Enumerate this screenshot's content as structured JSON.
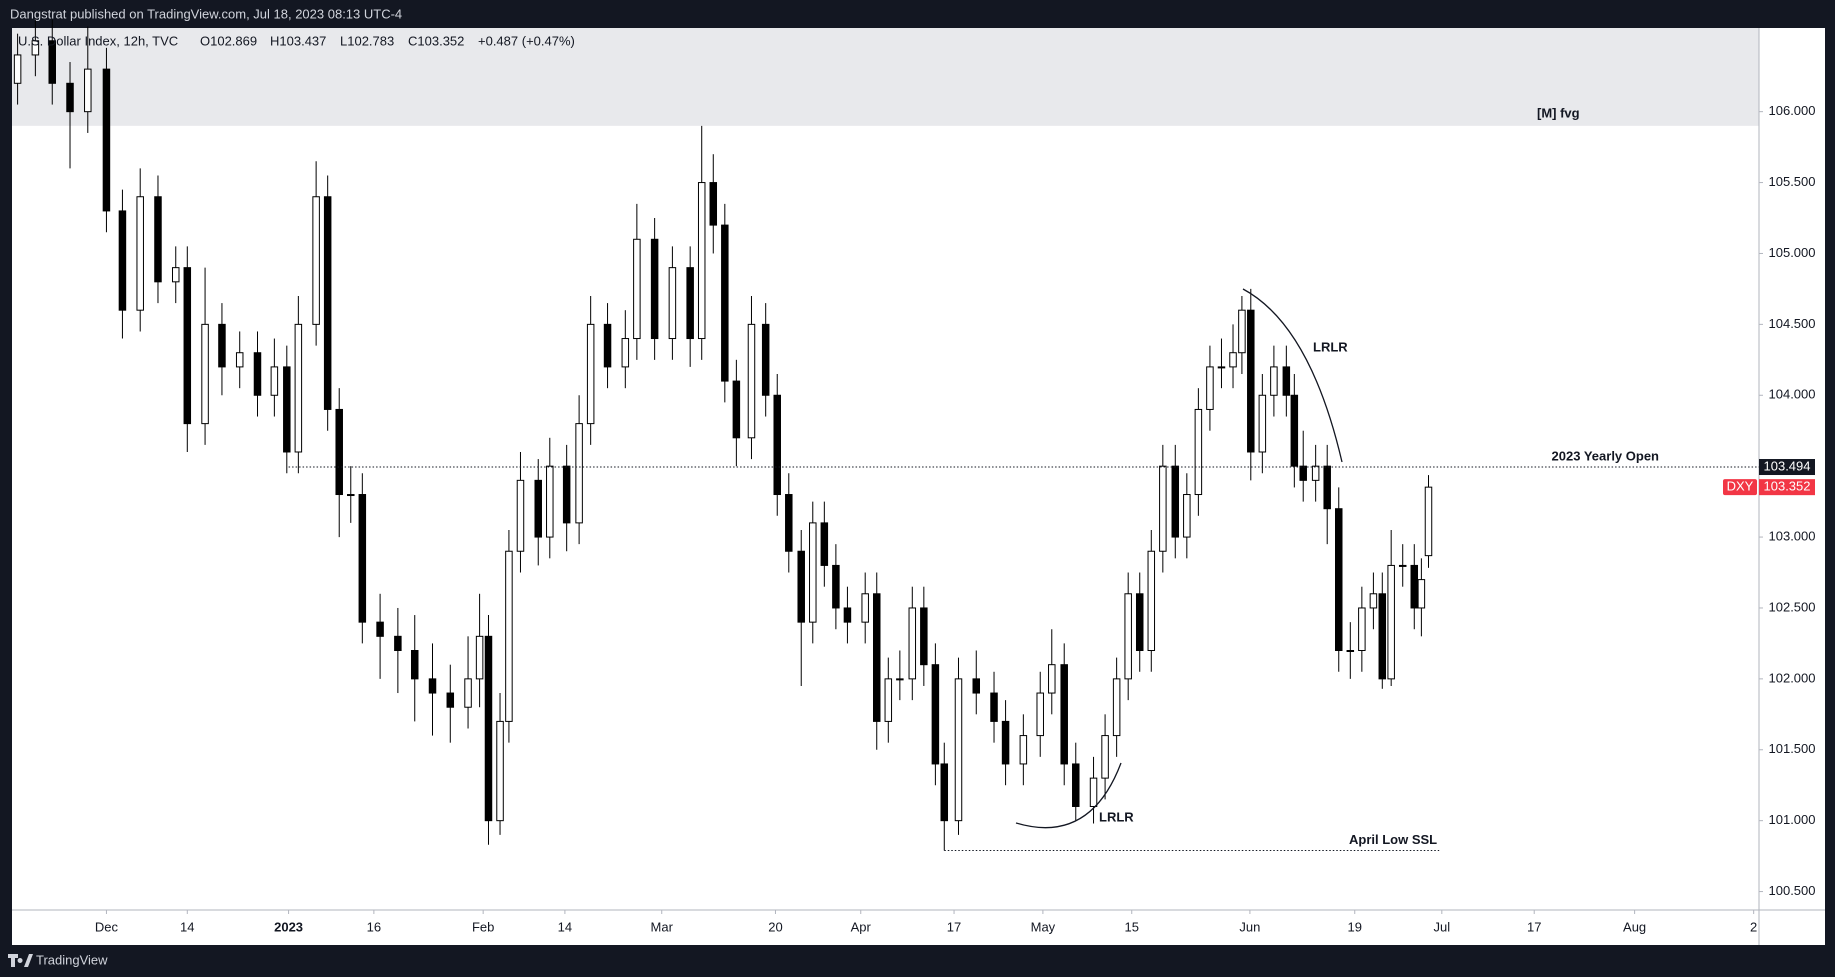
{
  "header": {
    "publisher": "Dangstrat published on TradingView.com, Jul 18, 2023 08:13 UTC-4",
    "brand": "TradingView"
  },
  "chart_data": {
    "type": "candlestick",
    "legend": {
      "symbol": "U.S. Dollar Index, 12h, TVC",
      "open": "O102.869",
      "high": "H103.437",
      "low": "L102.783",
      "close": "C103.352",
      "change": "+0.487 (+0.47%)"
    },
    "ticker": "DXY",
    "up_color": "#ffffff",
    "down_color": "#000000",
    "border_color": "#000000",
    "last_price_color": "#f23645",
    "x": [
      -10.0,
      -8.0,
      -6.1,
      -4.1,
      -2.1,
      0,
      1.8,
      3.8,
      5.8,
      7.8,
      9.1,
      11.1,
      13.0,
      15.0,
      17.0,
      18.9,
      20.3,
      21.6,
      23.6,
      24.9,
      26.2,
      27.5,
      28.8,
      30.8,
      32.8,
      34.7,
      36.7,
      38.7,
      40.7,
      42.0,
      43.0,
      44.3,
      45.3,
      46.6,
      48.6,
      49.9,
      51.8,
      53.2,
      54.5,
      56.4,
      58.4,
      59.7,
      61.7,
      63.7,
      65.7,
      67.0,
      68.3,
      69.6,
      70.9,
      72.6,
      74.2,
      75.5,
      76.8,
      78.2,
      79.5,
      80.8,
      82.1,
      83.4,
      85.4,
      86.7,
      88.0,
      89.3,
      90.7,
      92.0,
      93.3,
      94.3,
      95.9,
      97.9,
      99.9,
      101.2,
      103.2,
      105.1,
      106.4,
      107.8,
      109.1,
      111.1,
      112.4,
      113.7,
      115.0,
      116.3,
      117.6,
      118.9,
      120.3,
      121.6,
      122.9,
      124.2,
      125.5,
      126.8,
      127.8,
      128.8,
      130.1,
      131.4,
      132.8,
      133.7,
      134.7,
      136.1,
      137.4,
      138.7,
      140.0,
      141.3,
      142.6,
      143.6,
      144.6,
      145.9,
      147.2,
      148.0,
      148.8
    ],
    "open": [
      106.2,
      106.4,
      106.5,
      106.2,
      106.0,
      106.3,
      105.3,
      104.6,
      105.4,
      104.8,
      104.9,
      103.8,
      104.5,
      104.2,
      104.3,
      104.0,
      104.2,
      103.6,
      104.5,
      105.4,
      103.9,
      103.3,
      103.3,
      102.4,
      102.3,
      102.2,
      102.0,
      101.9,
      101.8,
      102.0,
      102.3,
      101.0,
      101.7,
      102.9,
      103.4,
      103.0,
      103.5,
      103.1,
      103.8,
      104.5,
      104.2,
      104.4,
      105.1,
      104.4,
      104.9,
      104.4,
      105.5,
      105.2,
      104.1,
      103.7,
      104.5,
      104.0,
      103.3,
      102.9,
      102.4,
      103.1,
      102.8,
      102.5,
      102.4,
      102.6,
      101.7,
      102.0,
      102.0,
      102.5,
      102.1,
      101.4,
      101.0,
      102.0,
      101.9,
      101.7,
      101.4,
      101.6,
      101.9,
      102.1,
      101.4,
      101.1,
      101.3,
      101.6,
      102.0,
      102.6,
      102.2,
      102.9,
      103.5,
      103.0,
      103.3,
      103.9,
      104.2,
      104.2,
      104.3,
      104.6,
      103.6,
      104.0,
      104.2,
      104.0,
      103.5,
      103.4,
      103.5,
      103.2,
      102.2,
      102.2,
      102.5,
      102.6,
      102.0,
      102.8,
      102.8,
      102.5,
      102.869
    ],
    "high": [
      106.55,
      106.65,
      106.65,
      106.35,
      106.6,
      106.45,
      105.45,
      105.6,
      105.55,
      105.05,
      105.05,
      104.9,
      104.65,
      104.45,
      104.45,
      104.4,
      104.35,
      104.7,
      105.65,
      105.55,
      104.05,
      103.5,
      103.45,
      102.6,
      102.5,
      102.45,
      102.25,
      102.1,
      102.3,
      102.6,
      102.45,
      101.9,
      103.05,
      103.6,
      103.55,
      103.7,
      103.65,
      104.0,
      104.7,
      104.65,
      104.6,
      105.35,
      105.25,
      105.05,
      105.05,
      105.9,
      105.7,
      105.35,
      104.25,
      104.7,
      104.65,
      104.15,
      103.45,
      103.05,
      103.25,
      103.25,
      102.95,
      102.65,
      102.75,
      102.75,
      102.15,
      102.2,
      102.65,
      102.65,
      102.25,
      101.55,
      102.15,
      102.2,
      102.05,
      101.85,
      101.75,
      102.05,
      102.35,
      102.25,
      101.55,
      101.45,
      101.75,
      102.15,
      102.75,
      102.75,
      103.05,
      103.65,
      103.65,
      103.45,
      104.05,
      104.35,
      104.4,
      104.5,
      104.7,
      104.75,
      104.15,
      104.35,
      104.35,
      104.15,
      103.75,
      103.65,
      103.65,
      103.35,
      102.4,
      102.65,
      102.75,
      102.75,
      103.05,
      102.95,
      102.95,
      102.85,
      103.437
    ],
    "low": [
      106.05,
      106.25,
      106.05,
      105.6,
      105.85,
      105.15,
      104.4,
      104.45,
      104.65,
      104.65,
      103.6,
      103.65,
      104.0,
      104.05,
      103.85,
      103.85,
      103.45,
      103.45,
      104.35,
      103.75,
      103.0,
      103.1,
      102.25,
      102.0,
      101.9,
      101.7,
      101.6,
      101.55,
      101.65,
      101.8,
      100.83,
      100.9,
      101.55,
      102.75,
      102.8,
      102.85,
      102.9,
      102.95,
      103.65,
      104.05,
      104.05,
      104.25,
      104.25,
      104.25,
      104.2,
      104.25,
      105.0,
      103.95,
      103.5,
      103.55,
      103.85,
      103.15,
      102.75,
      101.95,
      102.25,
      102.65,
      102.35,
      102.25,
      102.25,
      101.5,
      101.55,
      101.85,
      101.85,
      101.95,
      101.25,
      100.79,
      100.9,
      101.75,
      101.55,
      101.25,
      101.25,
      101.45,
      101.75,
      101.25,
      101.0,
      100.98,
      101.15,
      101.45,
      101.85,
      102.05,
      102.05,
      102.75,
      102.85,
      102.85,
      103.15,
      103.75,
      104.05,
      104.05,
      104.15,
      103.4,
      103.45,
      103.85,
      103.85,
      103.35,
      103.25,
      103.25,
      102.95,
      102.05,
      102.0,
      102.05,
      102.35,
      101.93,
      101.95,
      102.65,
      102.35,
      102.3,
      102.783
    ],
    "close": [
      106.4,
      106.5,
      106.2,
      106.0,
      106.3,
      105.3,
      104.6,
      105.4,
      104.8,
      104.9,
      103.8,
      104.5,
      104.2,
      104.3,
      104.0,
      104.2,
      103.6,
      104.5,
      105.4,
      103.9,
      103.3,
      103.3,
      102.4,
      102.3,
      102.2,
      102.0,
      101.9,
      101.8,
      102.0,
      102.3,
      101.0,
      101.7,
      102.9,
      103.4,
      103.0,
      103.5,
      103.1,
      103.8,
      104.5,
      104.2,
      104.4,
      105.1,
      104.4,
      104.9,
      104.4,
      105.5,
      105.2,
      104.1,
      103.7,
      104.5,
      104.0,
      103.3,
      102.9,
      102.4,
      103.1,
      102.8,
      102.5,
      102.4,
      102.6,
      101.7,
      102.0,
      102.0,
      102.5,
      102.1,
      101.4,
      101.0,
      102.0,
      101.9,
      101.7,
      101.4,
      101.6,
      101.9,
      102.1,
      101.4,
      101.1,
      101.3,
      101.6,
      102.0,
      102.6,
      102.2,
      102.9,
      103.5,
      103.0,
      103.3,
      103.9,
      104.2,
      104.2,
      104.3,
      104.6,
      103.6,
      104.0,
      104.2,
      104.0,
      103.5,
      103.4,
      103.5,
      103.2,
      102.2,
      102.2,
      102.5,
      102.6,
      102.0,
      102.8,
      102.8,
      102.5,
      102.7,
      103.352
    ],
    "xlim": [
      -10.63,
      186
    ],
    "xticks": [
      {
        "value": 0,
        "label": "Dec"
      },
      {
        "value": 9.1,
        "label": "14"
      },
      {
        "value": 20.5,
        "label": "2023"
      },
      {
        "value": 30.1,
        "label": "16"
      },
      {
        "value": 42.4,
        "label": "Feb"
      },
      {
        "value": 51.6,
        "label": "14"
      },
      {
        "value": 62.5,
        "label": "Mar"
      },
      {
        "value": 75.3,
        "label": "20"
      },
      {
        "value": 84.9,
        "label": "Apr"
      },
      {
        "value": 95.4,
        "label": "17"
      },
      {
        "value": 105.4,
        "label": "May"
      },
      {
        "value": 115.4,
        "label": "15"
      },
      {
        "value": 128.7,
        "label": "Jun"
      },
      {
        "value": 140.5,
        "label": "19"
      },
      {
        "value": 150.3,
        "label": "Jul"
      },
      {
        "value": 160.7,
        "label": "17"
      },
      {
        "value": 172.0,
        "label": "Aug"
      },
      {
        "value": 185.4,
        "label": "2"
      }
    ],
    "ylim": [
      100.37,
      106.59
    ],
    "yticks": [
      {
        "value": 100.5,
        "label": "100.500"
      },
      {
        "value": 101,
        "label": "101.000"
      },
      {
        "value": 101.5,
        "label": "101.500"
      },
      {
        "value": 102,
        "label": "102.000"
      },
      {
        "value": 102.5,
        "label": "102.500"
      },
      {
        "value": 103,
        "label": "103.000"
      },
      {
        "value": 103.5,
        "label": "103.500"
      },
      {
        "value": 104,
        "label": "104.000"
      },
      {
        "value": 104.5,
        "label": "104.500"
      },
      {
        "value": 105,
        "label": "105.000"
      },
      {
        "value": 105.5,
        "label": "105.500"
      },
      {
        "value": 106,
        "label": "106.000"
      }
    ],
    "zone": {
      "label": "[M] fvg",
      "low": 105.9,
      "high": 106.59
    },
    "levels": [
      {
        "label": "2023 Yearly Open",
        "value": 103.494,
        "from": 20.5,
        "to": 186
      },
      {
        "label": "April Low SSL",
        "value": 100.79,
        "from": 94.3,
        "to": 150.0
      }
    ],
    "annotations": [
      "LRLR",
      "LRLR"
    ]
  }
}
